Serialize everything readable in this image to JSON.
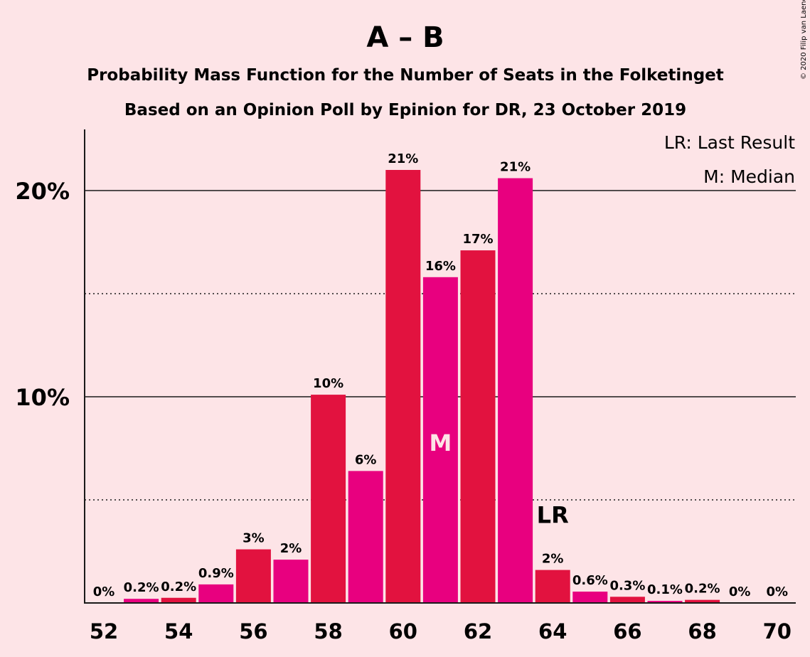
{
  "title": "A – B",
  "subtitle_line1": "Probability Mass Function for the Number of Seats in the Folketinget",
  "subtitle_line2": "Based on an Opinion Poll by Epinion for DR, 23 October 2019",
  "copyright": "© 2020 Filip van Laenen",
  "legend": {
    "last_result": "LR: Last Result",
    "median": "M: Median"
  },
  "markers": {
    "median_label": "M",
    "median_seat": 61,
    "last_result_label": "LR",
    "last_result_seat": 64
  },
  "colors": {
    "background": "#FDE4E7",
    "bar_odd": "#E8007F",
    "bar_even": "#E2123F",
    "text": "#1a1a1a"
  },
  "chart_data": {
    "type": "bar",
    "x": [
      52,
      53,
      54,
      55,
      56,
      57,
      58,
      59,
      60,
      61,
      62,
      63,
      64,
      65,
      66,
      67,
      68,
      69,
      70
    ],
    "values": [
      0,
      0.2,
      0.25,
      0.9,
      2.6,
      2.1,
      10.1,
      6.4,
      21.0,
      15.8,
      17.1,
      20.6,
      1.6,
      0.55,
      0.3,
      0.1,
      0.15,
      0,
      0
    ],
    "data_labels": [
      "0%",
      "0.2%",
      "0.2%",
      "0.9%",
      "3%",
      "2%",
      "10%",
      "6%",
      "21%",
      "16%",
      "17%",
      "21%",
      "2%",
      "0.6%",
      "0.3%",
      "0.1%",
      "0.2%",
      "0%",
      "0%"
    ],
    "x_tick_labels": [
      "52",
      "54",
      "56",
      "58",
      "60",
      "62",
      "64",
      "66",
      "68",
      "70"
    ],
    "y_tick_labels": [
      "10%",
      "20%"
    ],
    "ylim": [
      0,
      23
    ],
    "y_major_gridlines": [
      10,
      20
    ],
    "y_minor_gridlines": [
      5,
      15
    ],
    "legend_position": "top-right"
  }
}
